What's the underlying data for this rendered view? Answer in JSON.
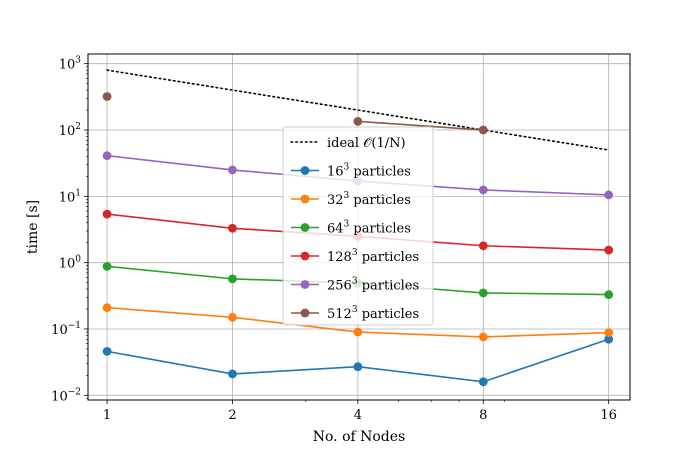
{
  "chart_data": {
    "type": "line",
    "title": "",
    "xlabel": "No. of Nodes",
    "ylabel": "time [s]",
    "x_scale": "log2",
    "y_scale": "log10",
    "xlim": [
      0.9,
      18
    ],
    "ylim": [
      0.0085,
      1400
    ],
    "grid": true,
    "legend_position": "center",
    "x": [
      1,
      2,
      4,
      8,
      16
    ],
    "x_tick_labels": [
      "1",
      "2",
      "4",
      "8",
      "16"
    ],
    "y_ticks": [
      {
        "value": 0.01,
        "base": "10",
        "exp": "−2"
      },
      {
        "value": 0.1,
        "base": "10",
        "exp": "−1"
      },
      {
        "value": 1,
        "base": "10",
        "exp": "0"
      },
      {
        "value": 10,
        "base": "10",
        "exp": "1"
      },
      {
        "value": 100,
        "base": "10",
        "exp": "2"
      },
      {
        "value": 1000,
        "base": "10",
        "exp": "3"
      }
    ],
    "ideal": {
      "label": "ideal 𝒪(1/N)",
      "x": [
        1,
        16
      ],
      "y": [
        800,
        50
      ],
      "color": "#000000"
    },
    "series": [
      {
        "name": "16³ particles",
        "base": "16",
        "sup": "3",
        "suffix": " particles",
        "color": "#1f77b4",
        "x": [
          1,
          2,
          4,
          8,
          16
        ],
        "y": [
          0.046,
          0.021,
          0.027,
          0.016,
          0.07
        ]
      },
      {
        "name": "32³ particles",
        "base": "32",
        "sup": "3",
        "suffix": " particles",
        "color": "#ff7f0e",
        "x": [
          1,
          2,
          4,
          8,
          16
        ],
        "y": [
          0.21,
          0.15,
          0.09,
          0.076,
          0.088
        ]
      },
      {
        "name": "64³ particles",
        "base": "64",
        "sup": "3",
        "suffix": " particles",
        "color": "#2ca02c",
        "x": [
          1,
          2,
          4,
          8,
          16
        ],
        "y": [
          0.88,
          0.57,
          0.49,
          0.35,
          0.33
        ]
      },
      {
        "name": "128³ particles",
        "base": "128",
        "sup": "3",
        "suffix": " particles",
        "color": "#d62728",
        "x": [
          1,
          2,
          4,
          8,
          16
        ],
        "y": [
          5.4,
          3.3,
          2.5,
          1.8,
          1.55
        ]
      },
      {
        "name": "256³ particles",
        "base": "256",
        "sup": "3",
        "suffix": " particles",
        "color": "#9467bd",
        "x": [
          1,
          2,
          4,
          8,
          16
        ],
        "y": [
          41,
          25,
          17,
          12.5,
          10.5
        ]
      },
      {
        "name": "512³ particles",
        "base": "512",
        "sup": "3",
        "suffix": " particles",
        "color": "#8c564b",
        "x": [
          1,
          4,
          8
        ],
        "y": [
          320,
          135,
          100
        ]
      }
    ]
  }
}
